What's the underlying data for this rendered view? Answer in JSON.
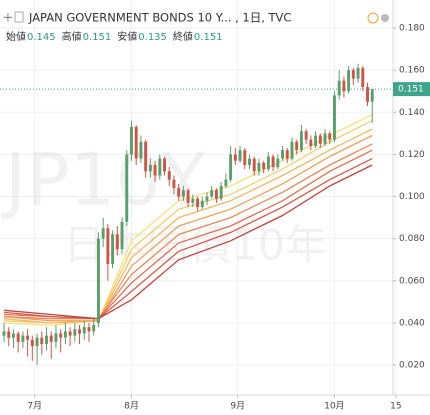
{
  "chart_data": {
    "type": "candlestick",
    "title": "JAPAN GOVERNMENT BONDS 10 Y... , 1日, TVC",
    "ohlc_legend": [
      {
        "label": "始値",
        "value": 0.145
      },
      {
        "label": "高値",
        "value": 0.151
      },
      {
        "label": "安値",
        "value": 0.135
      },
      {
        "label": "終値",
        "value": 0.151
      }
    ],
    "watermark": {
      "symbol": "JP10Y",
      "name": "日本国債10年"
    },
    "last_price": 0.151,
    "up_color": "#5a9e6b",
    "down_color": "#cd5548",
    "open": [
      0.034,
      0.036,
      0.033,
      0.035,
      0.031,
      0.034,
      0.032,
      0.029,
      0.033,
      0.03,
      0.034,
      0.031,
      0.035,
      0.033,
      0.036,
      0.034,
      0.037,
      0.035,
      0.038,
      0.036,
      0.04,
      0.08,
      0.085,
      0.068,
      0.082,
      0.075,
      0.088,
      0.12,
      0.133,
      0.118,
      0.126,
      0.112,
      0.115,
      0.11,
      0.118,
      0.112,
      0.108,
      0.104,
      0.1,
      0.103,
      0.097,
      0.099,
      0.095,
      0.098,
      0.1,
      0.103,
      0.099,
      0.105,
      0.108,
      0.12,
      0.117,
      0.122,
      0.115,
      0.118,
      0.112,
      0.116,
      0.113,
      0.119,
      0.114,
      0.118,
      0.122,
      0.118,
      0.126,
      0.122,
      0.131,
      0.127,
      0.124,
      0.129,
      0.125,
      0.13,
      0.127,
      0.148,
      0.155,
      0.15,
      0.16,
      0.156,
      0.161,
      0.152,
      0.145
    ],
    "high": [
      0.04,
      0.038,
      0.037,
      0.036,
      0.036,
      0.037,
      0.034,
      0.035,
      0.036,
      0.038,
      0.036,
      0.039,
      0.037,
      0.04,
      0.038,
      0.04,
      0.039,
      0.041,
      0.04,
      0.042,
      0.083,
      0.09,
      0.087,
      0.084,
      0.086,
      0.09,
      0.122,
      0.136,
      0.134,
      0.129,
      0.127,
      0.118,
      0.117,
      0.12,
      0.119,
      0.114,
      0.11,
      0.106,
      0.105,
      0.104,
      0.101,
      0.1,
      0.1,
      0.102,
      0.105,
      0.104,
      0.107,
      0.111,
      0.124,
      0.123,
      0.124,
      0.123,
      0.12,
      0.119,
      0.118,
      0.117,
      0.121,
      0.12,
      0.12,
      0.124,
      0.123,
      0.128,
      0.127,
      0.134,
      0.132,
      0.129,
      0.131,
      0.13,
      0.132,
      0.131,
      0.15,
      0.16,
      0.157,
      0.162,
      0.161,
      0.163,
      0.162,
      0.154,
      0.151
    ],
    "low": [
      0.031,
      0.029,
      0.028,
      0.026,
      0.028,
      0.024,
      0.022,
      0.02,
      0.025,
      0.027,
      0.023,
      0.028,
      0.026,
      0.03,
      0.029,
      0.031,
      0.03,
      0.032,
      0.031,
      0.034,
      0.038,
      0.076,
      0.06,
      0.066,
      0.072,
      0.073,
      0.086,
      0.117,
      0.115,
      0.116,
      0.109,
      0.109,
      0.107,
      0.108,
      0.11,
      0.105,
      0.101,
      0.098,
      0.098,
      0.095,
      0.095,
      0.093,
      0.094,
      0.096,
      0.099,
      0.097,
      0.098,
      0.104,
      0.107,
      0.115,
      0.116,
      0.113,
      0.113,
      0.11,
      0.11,
      0.111,
      0.112,
      0.112,
      0.113,
      0.117,
      0.116,
      0.117,
      0.12,
      0.121,
      0.125,
      0.122,
      0.123,
      0.123,
      0.124,
      0.125,
      0.126,
      0.146,
      0.147,
      0.149,
      0.153,
      0.154,
      0.15,
      0.143,
      0.135
    ],
    "close": [
      0.036,
      0.033,
      0.035,
      0.031,
      0.034,
      0.032,
      0.029,
      0.033,
      0.03,
      0.034,
      0.031,
      0.035,
      0.033,
      0.036,
      0.034,
      0.037,
      0.035,
      0.038,
      0.036,
      0.039,
      0.08,
      0.085,
      0.068,
      0.082,
      0.075,
      0.088,
      0.12,
      0.133,
      0.118,
      0.126,
      0.112,
      0.115,
      0.11,
      0.118,
      0.112,
      0.108,
      0.104,
      0.1,
      0.103,
      0.097,
      0.099,
      0.095,
      0.098,
      0.1,
      0.103,
      0.099,
      0.105,
      0.108,
      0.12,
      0.117,
      0.122,
      0.115,
      0.118,
      0.112,
      0.116,
      0.113,
      0.119,
      0.114,
      0.118,
      0.122,
      0.118,
      0.126,
      0.122,
      0.131,
      0.127,
      0.124,
      0.129,
      0.125,
      0.13,
      0.127,
      0.148,
      0.155,
      0.15,
      0.16,
      0.156,
      0.161,
      0.152,
      0.145,
      0.151
    ],
    "ribbons": [
      {
        "color": "#f6e27c",
        "x": [
          0,
          10,
          20,
          27,
          37,
          48,
          59,
          69,
          78
        ],
        "values": [
          0.04,
          0.039,
          0.041,
          0.079,
          0.098,
          0.105,
          0.117,
          0.129,
          0.139
        ]
      },
      {
        "color": "#f4cf70",
        "x": [
          0,
          10,
          20,
          27,
          37,
          48,
          59,
          69,
          78
        ],
        "values": [
          0.041,
          0.04,
          0.041,
          0.075,
          0.094,
          0.101,
          0.113,
          0.126,
          0.136
        ]
      },
      {
        "color": "#f2b866",
        "x": [
          0,
          10,
          20,
          27,
          37,
          48,
          59,
          69,
          78
        ],
        "values": [
          0.042,
          0.04,
          0.041,
          0.071,
          0.09,
          0.098,
          0.11,
          0.122,
          0.132
        ]
      },
      {
        "color": "#efa05e",
        "x": [
          0,
          10,
          20,
          27,
          37,
          48,
          59,
          69,
          78
        ],
        "values": [
          0.043,
          0.041,
          0.041,
          0.067,
          0.086,
          0.094,
          0.106,
          0.119,
          0.129
        ]
      },
      {
        "color": "#ea8857",
        "x": [
          0,
          10,
          20,
          27,
          37,
          48,
          59,
          69,
          78
        ],
        "values": [
          0.043,
          0.042,
          0.042,
          0.063,
          0.082,
          0.09,
          0.102,
          0.115,
          0.125
        ]
      },
      {
        "color": "#e2704f",
        "x": [
          0,
          10,
          20,
          27,
          37,
          48,
          59,
          69,
          78
        ],
        "values": [
          0.044,
          0.043,
          0.042,
          0.059,
          0.078,
          0.086,
          0.098,
          0.112,
          0.122
        ]
      },
      {
        "color": "#d65948",
        "x": [
          0,
          10,
          20,
          27,
          37,
          48,
          59,
          69,
          78
        ],
        "values": [
          0.045,
          0.043,
          0.042,
          0.055,
          0.074,
          0.083,
          0.095,
          0.108,
          0.118
        ]
      },
      {
        "color": "#c44340",
        "x": [
          0,
          10,
          20,
          27,
          37,
          48,
          59,
          69,
          78
        ],
        "values": [
          0.046,
          0.044,
          0.042,
          0.051,
          0.07,
          0.079,
          0.091,
          0.105,
          0.115
        ]
      }
    ],
    "xlim": [
      -0.85,
      82.4
    ],
    "xticks": [
      {
        "value": 6.5,
        "label": "7月"
      },
      {
        "value": 27,
        "label": "8月"
      },
      {
        "value": 49.5,
        "label": "9月"
      },
      {
        "value": 70,
        "label": "10月"
      },
      {
        "value": 83,
        "label": "15"
      }
    ],
    "ylim": [
      0.0058,
      0.1933
    ],
    "yticks": [
      {
        "value": 0.02,
        "label": "0.020"
      },
      {
        "value": 0.04,
        "label": "0.040"
      },
      {
        "value": 0.06,
        "label": "0.060"
      },
      {
        "value": 0.08,
        "label": "0.080"
      },
      {
        "value": 0.1,
        "label": "0.100"
      },
      {
        "value": 0.12,
        "label": "0.120"
      },
      {
        "value": 0.14,
        "label": "0.140"
      },
      {
        "value": 0.16,
        "label": "0.160"
      },
      {
        "value": 0.18,
        "label": "0.180"
      }
    ],
    "grid": true
  }
}
